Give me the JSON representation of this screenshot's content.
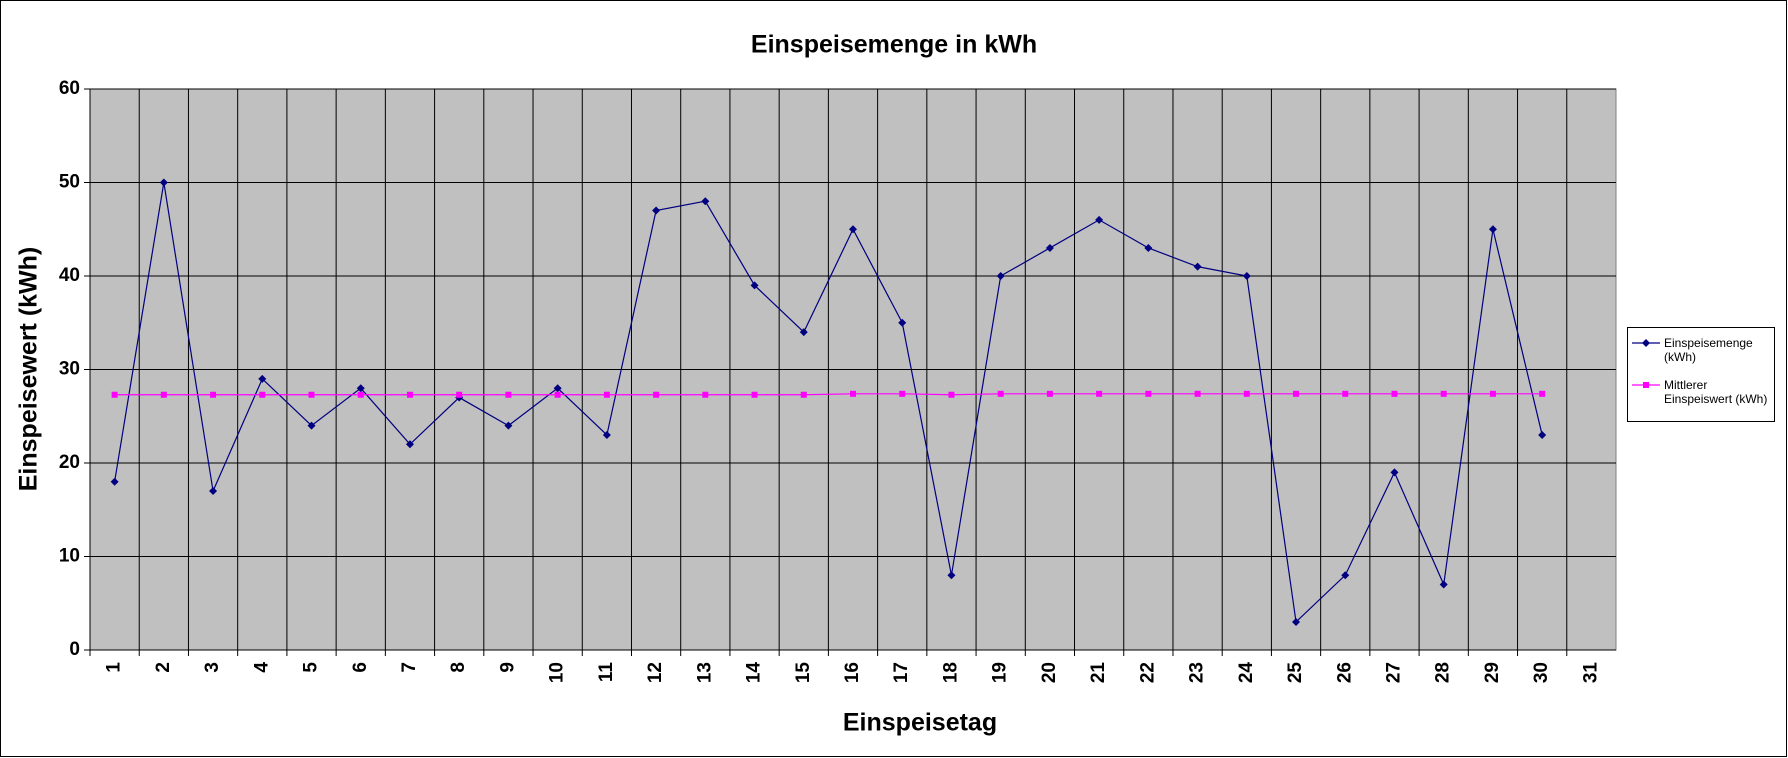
{
  "chart_data": {
    "type": "line",
    "title": "Einspeisemenge in kWh",
    "x_label": "Einspeisetag",
    "y_label": "Einspeisewert  (kWh)",
    "categories": [
      "1",
      "2",
      "3",
      "4",
      "5",
      "6",
      "7",
      "8",
      "9",
      "10",
      "11",
      "12",
      "13",
      "14",
      "15",
      "16",
      "17",
      "18",
      "19",
      "20",
      "21",
      "22",
      "23",
      "24",
      "25",
      "26",
      "27",
      "28",
      "29",
      "30",
      "31"
    ],
    "series": [
      {
        "name": "Einspeisemenge (kWh)",
        "color": "#000080",
        "marker": "diamond",
        "values": [
          18,
          50,
          17,
          29,
          24,
          28,
          22,
          27,
          24,
          28,
          23,
          47,
          48,
          39,
          34,
          45,
          35,
          8,
          40,
          43,
          46,
          43,
          41,
          40,
          3,
          8,
          19,
          7,
          45,
          23,
          null
        ]
      },
      {
        "name": "Mittlerer Einspeiswert (kWh)",
        "color": "#ff00ff",
        "marker": "square",
        "values": [
          27.3,
          27.3,
          27.3,
          27.3,
          27.3,
          27.3,
          27.3,
          27.3,
          27.3,
          27.3,
          27.3,
          27.3,
          27.3,
          27.3,
          27.3,
          27.4,
          27.4,
          27.3,
          27.4,
          27.4,
          27.4,
          27.4,
          27.4,
          27.4,
          27.4,
          27.4,
          27.4,
          27.4,
          27.4,
          27.4,
          null
        ]
      }
    ],
    "ylim": [
      0,
      60
    ],
    "yticks": [
      0,
      10,
      20,
      30,
      40,
      50,
      60
    ],
    "grid": true,
    "plot_background": "#c0c0c0",
    "legend": "right"
  }
}
